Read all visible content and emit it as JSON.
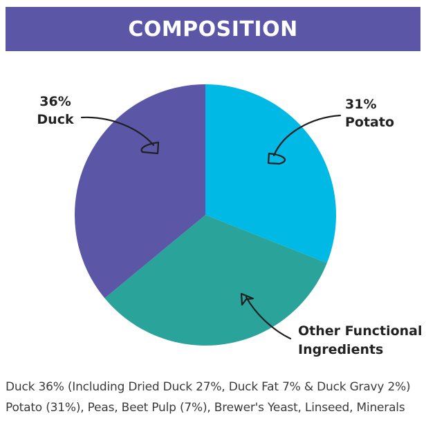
{
  "header": {
    "title": "COMPOSITION"
  },
  "chart_data": {
    "type": "pie",
    "title": "",
    "slices": [
      {
        "label": "Duck",
        "value": 36,
        "value_label": "36%",
        "color": "#5b57a6"
      },
      {
        "label": "Potato",
        "value": 31,
        "value_label": "31%",
        "color": "#00b9e4"
      },
      {
        "label": "Other Functional Ingredients",
        "value": 33,
        "value_label": "",
        "color": "#2aa39a"
      }
    ],
    "annotations": {
      "duck_percent": "36%",
      "duck_name": "Duck",
      "potato_percent": "31%",
      "potato_name": "Potato",
      "other_line1": "Other Functional",
      "other_line2": "Ingredients"
    }
  },
  "footnotes": {
    "line1": "Duck 36% (Including Dried Duck 27%, Duck Fat 7% & Duck Gravy 2%)",
    "line2": "Potato (31%), Peas, Beet Pulp (7%), Brewer's Yeast, Linseed, Minerals"
  }
}
